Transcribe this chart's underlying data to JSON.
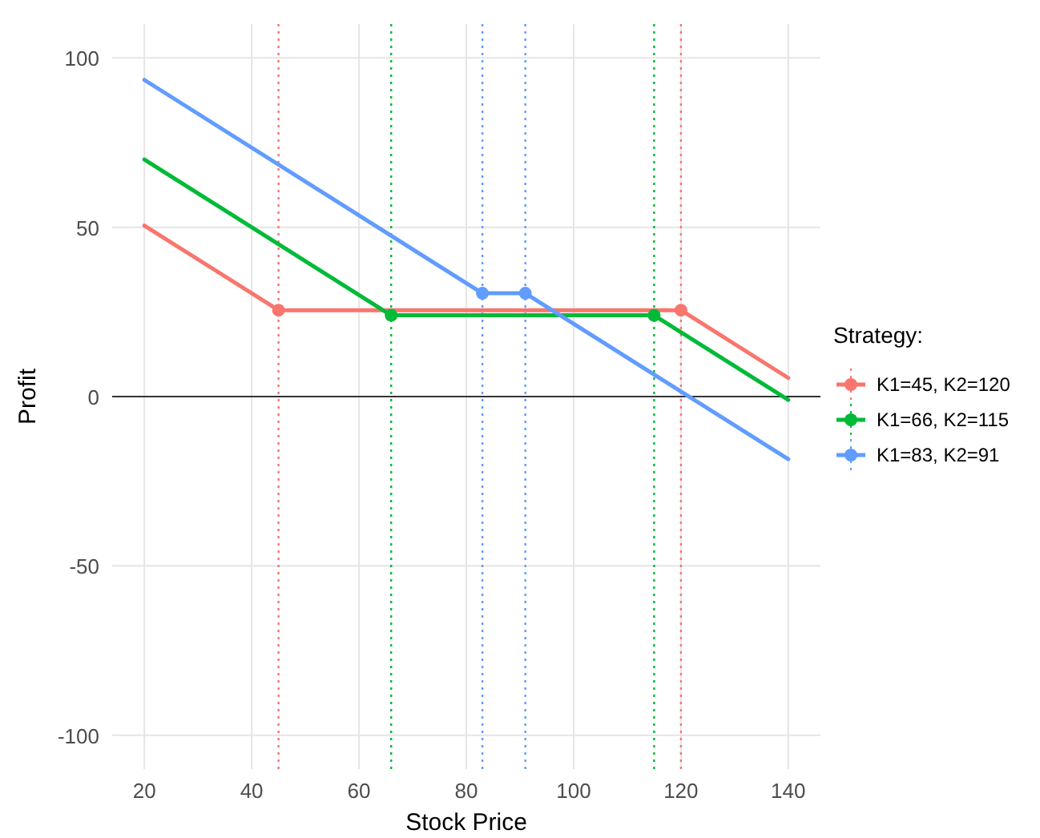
{
  "chart_data": {
    "type": "line",
    "xlabel": "Stock Price",
    "ylabel": "Profit",
    "legend_title": "Strategy:",
    "legend": "right",
    "grid": true,
    "marker": "none",
    "line_style": "solid",
    "xlim": [
      14,
      146
    ],
    "xticks": [
      20,
      40,
      60,
      80,
      100,
      120,
      140
    ],
    "ylim": [
      -110,
      110
    ],
    "yticks": [
      -100,
      -50,
      0,
      50,
      100
    ],
    "series": [
      {
        "name": "K1=45, K2=120",
        "color": "#f8766d",
        "x": [
          20,
          45,
          120,
          140
        ],
        "values": [
          50.5,
          25.5,
          25.5,
          5.5
        ]
      },
      {
        "name": "K1=66, K2=115",
        "color": "#00ba38",
        "x": [
          20,
          66,
          115,
          140
        ],
        "values": [
          70,
          24,
          24,
          -1
        ]
      },
      {
        "name": "K1=83, K2=91",
        "color": "#619cff",
        "x": [
          20,
          83,
          91,
          140
        ],
        "values": [
          93.5,
          30.5,
          30.5,
          -18.5
        ]
      },
      {
        "type": "scatter",
        "color": "#f8766d",
        "x": [
          45,
          120
        ],
        "values": [
          25.5,
          25.5
        ],
        "marker": "circle"
      },
      {
        "type": "scatter",
        "color": "#00ba38",
        "x": [
          66,
          115
        ],
        "values": [
          24,
          24
        ],
        "marker": "circle"
      },
      {
        "type": "scatter",
        "color": "#619cff",
        "x": [
          83,
          91
        ],
        "values": [
          30.5,
          30.5
        ],
        "marker": "circle"
      }
    ],
    "ref_lines": [
      {
        "axis": "y",
        "value": 0,
        "color": "#333333",
        "line_style": "solid"
      },
      {
        "axis": "x",
        "value": 45,
        "color": "#f8766d",
        "line_style": "dotted"
      },
      {
        "axis": "x",
        "value": 120,
        "color": "#f8766d",
        "line_style": "dotted"
      },
      {
        "axis": "x",
        "value": 66,
        "color": "#00ba38",
        "line_style": "dotted"
      },
      {
        "axis": "x",
        "value": 115,
        "color": "#00ba38",
        "line_style": "dotted"
      },
      {
        "axis": "x",
        "value": 83,
        "color": "#619cff",
        "line_style": "dotted"
      },
      {
        "axis": "x",
        "value": 91,
        "color": "#619cff",
        "line_style": "dotted"
      }
    ]
  }
}
